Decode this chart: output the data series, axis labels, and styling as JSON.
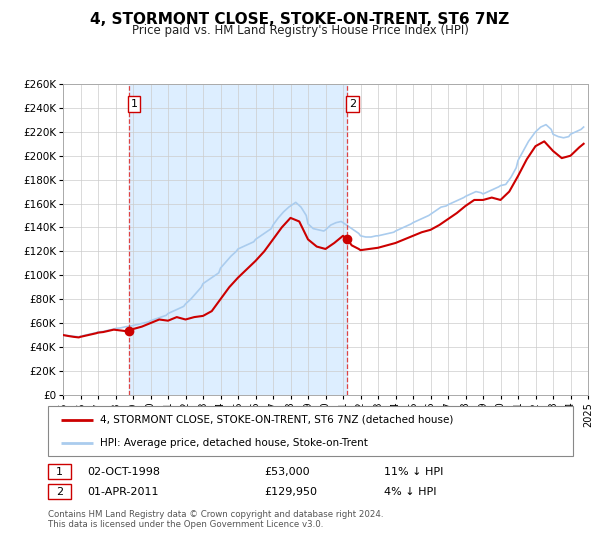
{
  "title": "4, STORMONT CLOSE, STOKE-ON-TRENT, ST6 7NZ",
  "subtitle": "Price paid vs. HM Land Registry's House Price Index (HPI)",
  "legend_line1": "4, STORMONT CLOSE, STOKE-ON-TRENT, ST6 7NZ (detached house)",
  "legend_line2": "HPI: Average price, detached house, Stoke-on-Trent",
  "sale1_label": "1",
  "sale1_date": "02-OCT-1998",
  "sale1_price": "£53,000",
  "sale1_hpi": "11% ↓ HPI",
  "sale2_label": "2",
  "sale2_date": "01-APR-2011",
  "sale2_price": "£129,950",
  "sale2_hpi": "4% ↓ HPI",
  "footer": "Contains HM Land Registry data © Crown copyright and database right 2024.\nThis data is licensed under the Open Government Licence v3.0.",
  "sale_color": "#cc0000",
  "hpi_color": "#aaccee",
  "vline_color": "#dd4444",
  "shade_color": "#ddeeff",
  "label_border_color": "#cc0000",
  "ylim": [
    0,
    260000
  ],
  "yticks": [
    0,
    20000,
    40000,
    60000,
    80000,
    100000,
    120000,
    140000,
    160000,
    180000,
    200000,
    220000,
    240000,
    260000
  ],
  "ytick_labels": [
    "£0",
    "£20K",
    "£40K",
    "£60K",
    "£80K",
    "£100K",
    "£120K",
    "£140K",
    "£160K",
    "£180K",
    "£200K",
    "£220K",
    "£240K",
    "£260K"
  ],
  "xtick_years": [
    1995,
    1996,
    1997,
    1998,
    1999,
    2000,
    2001,
    2002,
    2003,
    2004,
    2005,
    2006,
    2007,
    2008,
    2009,
    2010,
    2011,
    2012,
    2013,
    2014,
    2015,
    2016,
    2017,
    2018,
    2019,
    2020,
    2021,
    2022,
    2023,
    2024,
    2025
  ],
  "sale1_x": 1998.75,
  "sale1_y": 53000,
  "sale2_x": 2011.25,
  "sale2_y": 129950,
  "vline1_x": 1998.75,
  "vline2_x": 2011.25,
  "hpi_data": [
    [
      1995.0,
      50000
    ],
    [
      1995.3,
      49500
    ],
    [
      1995.6,
      49000
    ],
    [
      1995.9,
      48500
    ],
    [
      1996.0,
      49000
    ],
    [
      1996.3,
      50000
    ],
    [
      1996.6,
      51000
    ],
    [
      1996.9,
      52000
    ],
    [
      1997.0,
      52500
    ],
    [
      1997.3,
      53000
    ],
    [
      1997.6,
      54000
    ],
    [
      1997.9,
      55000
    ],
    [
      1998.0,
      55500
    ],
    [
      1998.3,
      56000
    ],
    [
      1998.6,
      57000
    ],
    [
      1998.9,
      57500
    ],
    [
      1999.0,
      58000
    ],
    [
      1999.3,
      59000
    ],
    [
      1999.6,
      60000
    ],
    [
      1999.9,
      61000
    ],
    [
      2000.0,
      62000
    ],
    [
      2000.3,
      63500
    ],
    [
      2000.6,
      65000
    ],
    [
      2000.9,
      66500
    ],
    [
      2001.0,
      68000
    ],
    [
      2001.3,
      70000
    ],
    [
      2001.6,
      72000
    ],
    [
      2001.9,
      74000
    ],
    [
      2002.0,
      76000
    ],
    [
      2002.3,
      80000
    ],
    [
      2002.6,
      85000
    ],
    [
      2002.9,
      90000
    ],
    [
      2003.0,
      93000
    ],
    [
      2003.3,
      96000
    ],
    [
      2003.6,
      99000
    ],
    [
      2003.9,
      102000
    ],
    [
      2004.0,
      106000
    ],
    [
      2004.3,
      111000
    ],
    [
      2004.6,
      116000
    ],
    [
      2004.9,
      120000
    ],
    [
      2005.0,
      122000
    ],
    [
      2005.3,
      124000
    ],
    [
      2005.6,
      126000
    ],
    [
      2005.9,
      128000
    ],
    [
      2006.0,
      130000
    ],
    [
      2006.3,
      133000
    ],
    [
      2006.6,
      136000
    ],
    [
      2006.9,
      139000
    ],
    [
      2007.0,
      142000
    ],
    [
      2007.3,
      148000
    ],
    [
      2007.6,
      153000
    ],
    [
      2007.9,
      157000
    ],
    [
      2008.0,
      158000
    ],
    [
      2008.3,
      161000
    ],
    [
      2008.6,
      157000
    ],
    [
      2008.9,
      150000
    ],
    [
      2009.0,
      143000
    ],
    [
      2009.3,
      139000
    ],
    [
      2009.6,
      138000
    ],
    [
      2009.9,
      137000
    ],
    [
      2010.0,
      138000
    ],
    [
      2010.3,
      142000
    ],
    [
      2010.6,
      144000
    ],
    [
      2010.9,
      145000
    ],
    [
      2011.0,
      144000
    ],
    [
      2011.3,
      141000
    ],
    [
      2011.6,
      138000
    ],
    [
      2011.9,
      135000
    ],
    [
      2012.0,
      133000
    ],
    [
      2012.3,
      132000
    ],
    [
      2012.6,
      132000
    ],
    [
      2012.9,
      133000
    ],
    [
      2013.0,
      133000
    ],
    [
      2013.3,
      134000
    ],
    [
      2013.6,
      135000
    ],
    [
      2013.9,
      136000
    ],
    [
      2014.0,
      137000
    ],
    [
      2014.3,
      139000
    ],
    [
      2014.6,
      141000
    ],
    [
      2014.9,
      143000
    ],
    [
      2015.0,
      144000
    ],
    [
      2015.3,
      146000
    ],
    [
      2015.6,
      148000
    ],
    [
      2015.9,
      150000
    ],
    [
      2016.0,
      151000
    ],
    [
      2016.3,
      154000
    ],
    [
      2016.6,
      157000
    ],
    [
      2016.9,
      158000
    ],
    [
      2017.0,
      159000
    ],
    [
      2017.3,
      161000
    ],
    [
      2017.6,
      163000
    ],
    [
      2017.9,
      165000
    ],
    [
      2018.0,
      166000
    ],
    [
      2018.3,
      168000
    ],
    [
      2018.6,
      170000
    ],
    [
      2018.9,
      169000
    ],
    [
      2019.0,
      168000
    ],
    [
      2019.3,
      170000
    ],
    [
      2019.6,
      172000
    ],
    [
      2019.9,
      174000
    ],
    [
      2020.0,
      175000
    ],
    [
      2020.3,
      176000
    ],
    [
      2020.6,
      182000
    ],
    [
      2020.9,
      190000
    ],
    [
      2021.0,
      196000
    ],
    [
      2021.3,
      204000
    ],
    [
      2021.6,
      212000
    ],
    [
      2021.9,
      218000
    ],
    [
      2022.0,
      220000
    ],
    [
      2022.3,
      224000
    ],
    [
      2022.6,
      226000
    ],
    [
      2022.9,
      222000
    ],
    [
      2023.0,
      218000
    ],
    [
      2023.3,
      216000
    ],
    [
      2023.6,
      215000
    ],
    [
      2023.9,
      216000
    ],
    [
      2024.0,
      218000
    ],
    [
      2024.3,
      220000
    ],
    [
      2024.6,
      222000
    ],
    [
      2024.75,
      224000
    ]
  ],
  "sale_data": [
    [
      1995.0,
      50000
    ],
    [
      1995.3,
      49200
    ],
    [
      1995.6,
      48500
    ],
    [
      1995.9,
      48000
    ],
    [
      1996.0,
      48500
    ],
    [
      1996.3,
      49500
    ],
    [
      1996.6,
      50500
    ],
    [
      1996.9,
      51500
    ],
    [
      1997.0,
      52000
    ],
    [
      1997.3,
      52500
    ],
    [
      1997.6,
      53500
    ],
    [
      1997.9,
      54500
    ],
    [
      1998.75,
      53000
    ],
    [
      1999.0,
      55000
    ],
    [
      1999.5,
      57000
    ],
    [
      2000.0,
      60000
    ],
    [
      2000.5,
      63000
    ],
    [
      2001.0,
      62000
    ],
    [
      2001.5,
      65000
    ],
    [
      2002.0,
      63000
    ],
    [
      2002.5,
      65000
    ],
    [
      2003.0,
      66000
    ],
    [
      2003.5,
      70000
    ],
    [
      2004.0,
      80000
    ],
    [
      2004.5,
      90000
    ],
    [
      2005.0,
      98000
    ],
    [
      2005.5,
      105000
    ],
    [
      2006.0,
      112000
    ],
    [
      2006.5,
      120000
    ],
    [
      2007.0,
      130000
    ],
    [
      2007.5,
      140000
    ],
    [
      2008.0,
      148000
    ],
    [
      2008.5,
      145000
    ],
    [
      2009.0,
      130000
    ],
    [
      2009.5,
      124000
    ],
    [
      2010.0,
      122000
    ],
    [
      2010.5,
      127000
    ],
    [
      2011.0,
      133000
    ],
    [
      2011.25,
      129950
    ],
    [
      2011.5,
      125000
    ],
    [
      2011.9,
      122000
    ],
    [
      2012.0,
      121000
    ],
    [
      2012.5,
      122000
    ],
    [
      2013.0,
      123000
    ],
    [
      2013.5,
      125000
    ],
    [
      2014.0,
      127000
    ],
    [
      2014.5,
      130000
    ],
    [
      2015.0,
      133000
    ],
    [
      2015.5,
      136000
    ],
    [
      2016.0,
      138000
    ],
    [
      2016.5,
      142000
    ],
    [
      2017.0,
      147000
    ],
    [
      2017.5,
      152000
    ],
    [
      2018.0,
      158000
    ],
    [
      2018.5,
      163000
    ],
    [
      2019.0,
      163000
    ],
    [
      2019.5,
      165000
    ],
    [
      2020.0,
      163000
    ],
    [
      2020.5,
      170000
    ],
    [
      2021.0,
      183000
    ],
    [
      2021.5,
      197000
    ],
    [
      2022.0,
      208000
    ],
    [
      2022.5,
      212000
    ],
    [
      2023.0,
      204000
    ],
    [
      2023.5,
      198000
    ],
    [
      2024.0,
      200000
    ],
    [
      2024.5,
      207000
    ],
    [
      2024.75,
      210000
    ]
  ]
}
